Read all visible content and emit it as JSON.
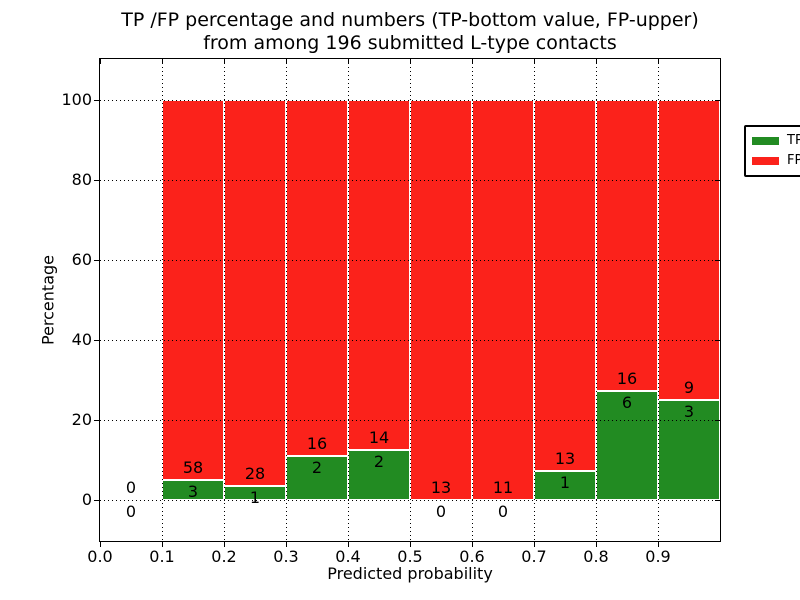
{
  "chart_data": {
    "type": "bar",
    "subtype": "stacked-percentage-histogram",
    "title": "TP /FP percentage and numbers (TP-bottom value, FP-upper)\nfrom among 196 submitted L-type contacts",
    "title_line1": "TP /FP percentage and numbers (TP-bottom value, FP-upper)",
    "title_line2": "from among 196 submitted L-type contacts",
    "xlabel": "Predicted probability",
    "ylabel": "Percentage",
    "total_contacts": 196,
    "bin_edges": [
      0.0,
      0.1,
      0.2,
      0.3,
      0.4,
      0.5,
      0.6,
      0.7,
      0.8,
      0.9,
      1.0
    ],
    "bin_width": 0.1,
    "series": [
      {
        "name": "TP",
        "color": "#228b22",
        "counts": [
          0,
          3,
          1,
          2,
          2,
          0,
          0,
          1,
          6,
          3
        ]
      },
      {
        "name": "FP",
        "color": "#fb221b",
        "counts": [
          0,
          58,
          28,
          16,
          14,
          13,
          11,
          13,
          16,
          9
        ]
      }
    ],
    "tp_percent_heights": [
      0.0,
      4.9,
      3.4,
      11.1,
      12.5,
      0.0,
      0.0,
      7.1,
      27.3,
      25.0
    ],
    "stack_top_percent": 100,
    "x_ticks": [
      "0.0",
      "0.1",
      "0.2",
      "0.3",
      "0.4",
      "0.5",
      "0.6",
      "0.7",
      "0.8",
      "0.9"
    ],
    "y_ticks": [
      "0",
      "20",
      "40",
      "60",
      "80",
      "100"
    ],
    "y_tick_values": [
      0,
      20,
      40,
      60,
      80,
      100
    ],
    "xlim": [
      0.0,
      1.0
    ],
    "ylim": [
      -10.25,
      110.25
    ],
    "grid": "dotted, drawn above bars",
    "bar_edge_color": "#ffffff",
    "axis_color": "#000000",
    "background_color": "#ffffff",
    "legend": {
      "position": "upper right",
      "entries": [
        {
          "label": "TP",
          "color": "#228b22"
        },
        {
          "label": "FP",
          "color": "#fb221b"
        }
      ]
    }
  }
}
